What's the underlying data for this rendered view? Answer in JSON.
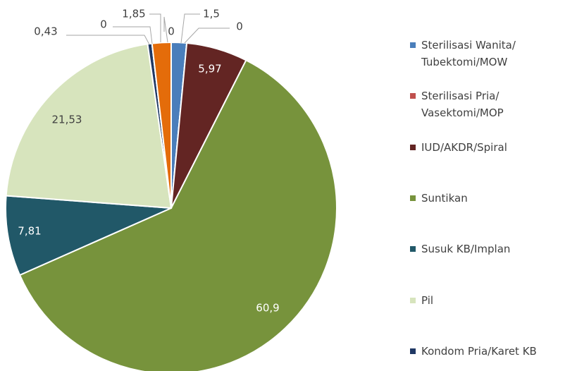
{
  "chart_data": {
    "type": "pie",
    "categories": [
      "Sterilisasi Wanita/ Tubektomi/MOW",
      "Sterilisasi Pria/ Vasektomi/MOP",
      "IUD/AKDR/Spiral",
      "Suntikan",
      "Susuk KB/Implan",
      "Pil",
      "Kondom Pria/Karet KB",
      null,
      null,
      null
    ],
    "values": [
      1.5,
      0,
      5.97,
      60.9,
      7.81,
      21.53,
      0.43,
      0,
      1.85,
      0
    ],
    "value_labels": [
      "1,5",
      "0",
      "5,97",
      "60,9",
      "7,81",
      "21,53",
      "0,43",
      "0",
      "1,85",
      "0"
    ],
    "colors": [
      "#4a7ebb",
      "#c0504d",
      "#632523",
      "#77933c",
      "#215868",
      "#d7e4bd",
      "#1f3864",
      "#7f7f7f",
      "#e46c0a",
      "#a5a5a5"
    ],
    "legend": "right"
  }
}
